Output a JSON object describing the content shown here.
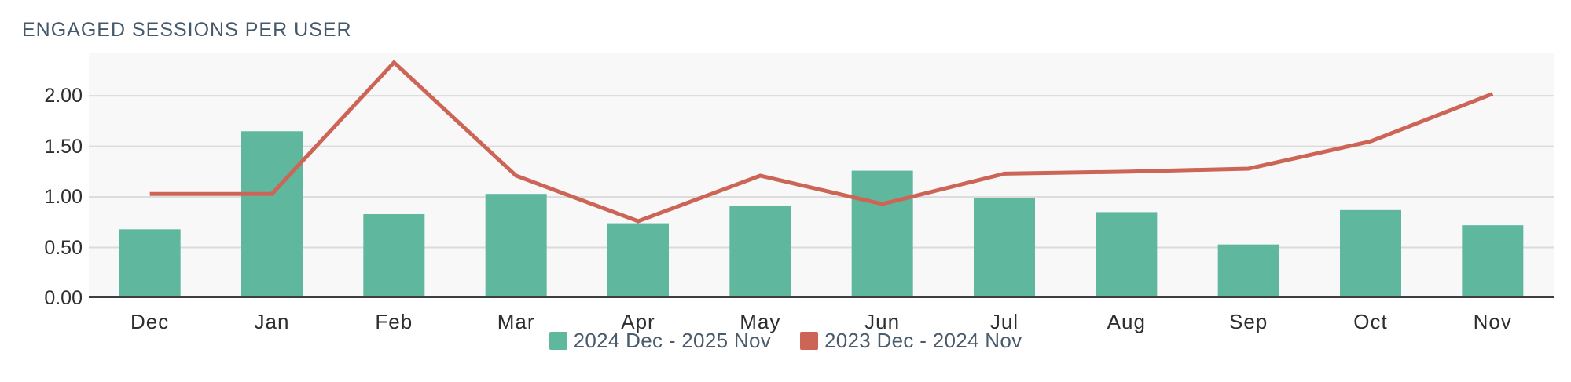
{
  "title": "ENGAGED SESSIONS PER USER",
  "colors": {
    "title_text": "#46586B",
    "axis_text": "#2E2E2E",
    "legend_text": "#4A5B6B",
    "plot_background": "#F8F8F8",
    "gridline": "#DBDBDB",
    "axis_line": "#3E3E3E",
    "bar_series": "#5FB89E",
    "line_series": "#CD6557"
  },
  "chart_data": {
    "type": "combo",
    "title": "ENGAGED SESSIONS PER USER",
    "categories": [
      "Dec",
      "Jan",
      "Feb",
      "Mar",
      "Apr",
      "May",
      "Jun",
      "Jul",
      "Aug",
      "Sep",
      "Oct",
      "Nov"
    ],
    "series": [
      {
        "name": "2024 Dec - 2025 Nov",
        "chart_type": "bar",
        "color": "#5FB89E",
        "values": [
          0.68,
          1.65,
          0.83,
          1.03,
          0.74,
          0.91,
          1.26,
          0.99,
          0.85,
          0.53,
          0.87,
          0.72
        ]
      },
      {
        "name": "2023 Dec - 2024 Nov",
        "chart_type": "line",
        "color": "#CD6557",
        "values": [
          1.03,
          1.03,
          2.33,
          1.21,
          0.76,
          1.21,
          0.93,
          1.23,
          1.25,
          1.28,
          1.55,
          2.02
        ]
      }
    ],
    "yticks": [
      {
        "label": "0.00",
        "value": 0
      },
      {
        "label": "0.50",
        "value": 0.5
      },
      {
        "label": "1.00",
        "value": 1
      },
      {
        "label": "1.50",
        "value": 1.5
      },
      {
        "label": "2.00",
        "value": 2
      }
    ],
    "ylim": [
      0,
      2.42
    ],
    "xlabel": "",
    "ylabel": "",
    "grid": true,
    "legend_position": "bottom"
  }
}
